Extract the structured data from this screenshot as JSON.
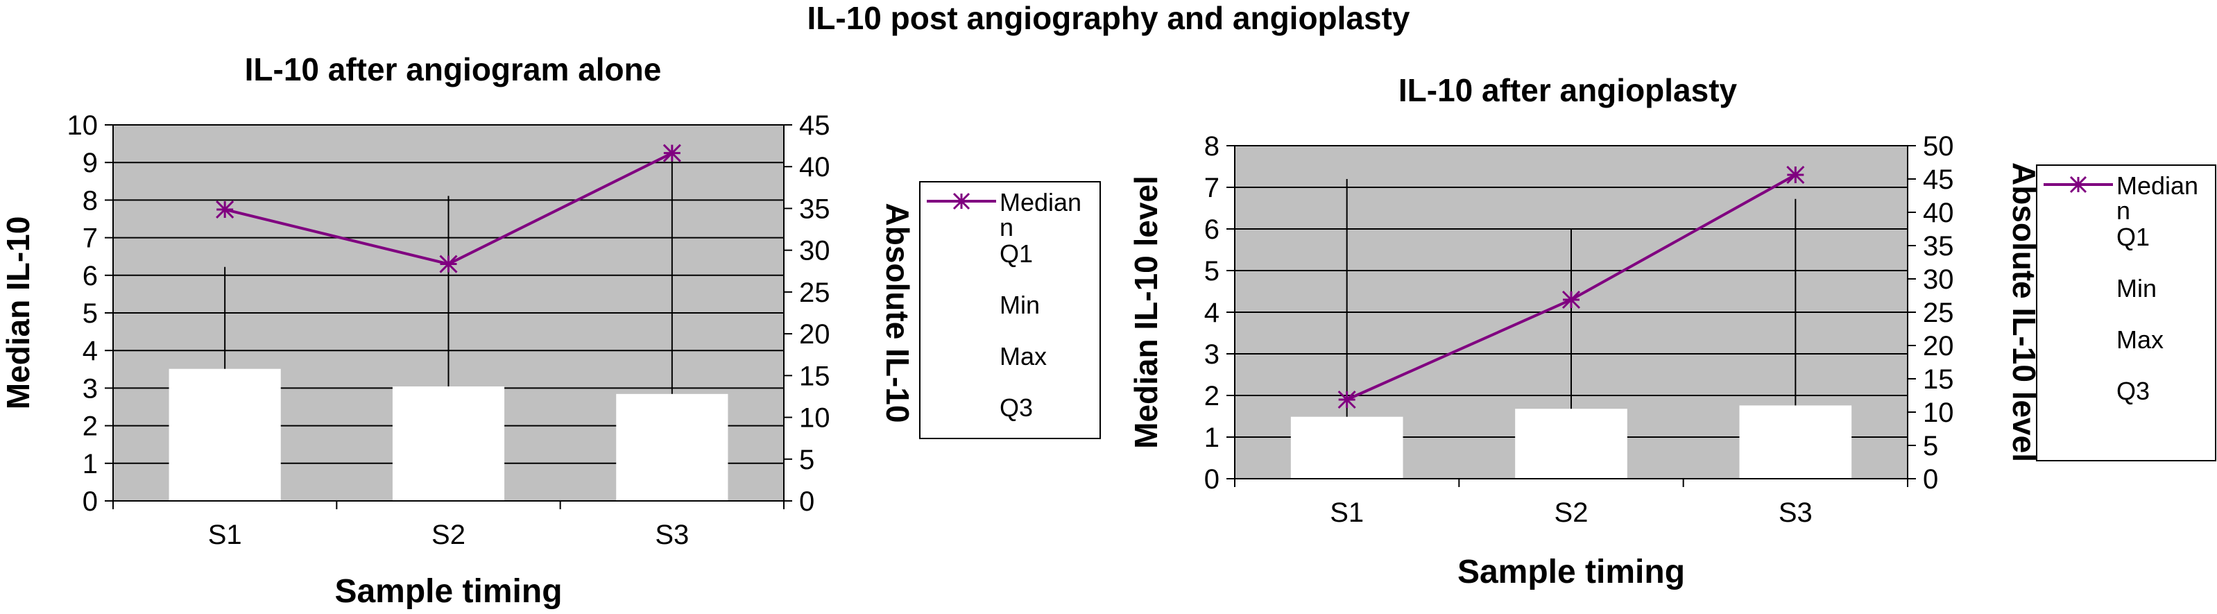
{
  "figure_title": "IL-10 post angiography and angioplasty",
  "colors": {
    "plot_bg": "#c0c0c0",
    "median_line": "#800080",
    "box": "#ffffff",
    "whisker": "#000000",
    "grid": "#000000"
  },
  "chart_data": [
    {
      "type": "bar",
      "title": "IL-10 after angiogram alone",
      "xlabel": "Sample timing",
      "ylabel": "Median IL-10",
      "y2label": "Absolute IL-10",
      "categories": [
        "S1",
        "S2",
        "S3"
      ],
      "ylim": [
        0,
        10
      ],
      "yticks": [
        "0",
        "1",
        "2",
        "3",
        "4",
        "5",
        "6",
        "7",
        "8",
        "9",
        "10"
      ],
      "y2lim": [
        0,
        45
      ],
      "y2ticks": [
        "0",
        "5",
        "10",
        "15",
        "20",
        "25",
        "30",
        "35",
        "40",
        "45"
      ],
      "grid": true,
      "legend_position": "right",
      "legend": [
        "Median",
        "n",
        "Q1",
        "Min",
        "Max",
        "Q3"
      ],
      "series": [
        {
          "name": "Median",
          "kind": "line",
          "axis": "left",
          "marker": "asterisk",
          "values": [
            7.75,
            6.3,
            9.25
          ]
        },
        {
          "name": "Max",
          "kind": "whisker",
          "axis": "right",
          "values": [
            28,
            36.5,
            41.5
          ]
        },
        {
          "name": "Q3",
          "kind": "bar",
          "axis": "right",
          "values": [
            15.8,
            13.7,
            12.8
          ]
        }
      ]
    },
    {
      "type": "bar",
      "title": "IL-10 after angioplasty",
      "xlabel": "Sample timing",
      "ylabel": "Median IL-10 level",
      "y2label": "Absolute IL-10 level",
      "categories": [
        "S1",
        "S2",
        "S3"
      ],
      "ylim": [
        0,
        8
      ],
      "yticks": [
        "0",
        "1",
        "2",
        "3",
        "4",
        "5",
        "6",
        "7",
        "8"
      ],
      "y2lim": [
        0,
        50
      ],
      "y2ticks": [
        "0",
        "5",
        "10",
        "15",
        "20",
        "25",
        "30",
        "35",
        "40",
        "45",
        "50"
      ],
      "grid": true,
      "legend_position": "right",
      "legend": [
        "Median",
        "n",
        "Q1",
        "Min",
        "Max",
        "Q3"
      ],
      "series": [
        {
          "name": "Median",
          "kind": "line",
          "axis": "left",
          "marker": "asterisk",
          "values": [
            1.9,
            4.3,
            7.3
          ]
        },
        {
          "name": "Max",
          "kind": "whisker",
          "axis": "right",
          "values": [
            45,
            37.5,
            42
          ]
        },
        {
          "name": "Q3",
          "kind": "bar",
          "axis": "right",
          "values": [
            9.3,
            10.5,
            11
          ]
        }
      ]
    }
  ]
}
